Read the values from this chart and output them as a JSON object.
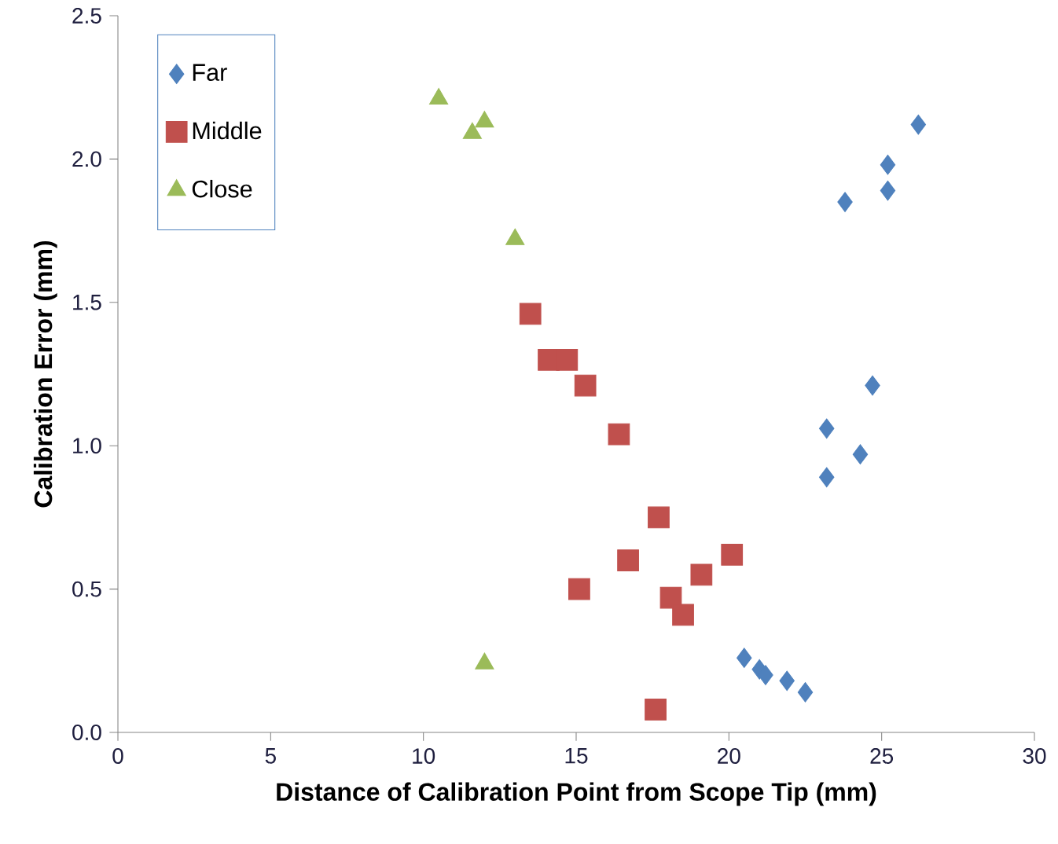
{
  "chart_data": {
    "type": "scatter",
    "xlabel": "Distance of Calibration Point from Scope Tip (mm)",
    "ylabel": "Calibration Error (mm)",
    "xlim": [
      0,
      30
    ],
    "xticks": [
      0,
      5,
      10,
      15,
      20,
      25,
      30
    ],
    "ylim": [
      0,
      2.5
    ],
    "yticks": [
      {
        "value": 0,
        "label": "0.0"
      },
      {
        "value": 0.5,
        "label": "0.5"
      },
      {
        "value": 1,
        "label": "1.0"
      },
      {
        "value": 1.5,
        "label": "1.5"
      },
      {
        "value": 2,
        "label": "2.0"
      },
      {
        "value": 2.5,
        "label": "2.5"
      }
    ],
    "grid": false,
    "legend": "top left",
    "series": [
      {
        "name": "Far",
        "color": "#4f81bd",
        "marker": "diamond",
        "x": [
          26.2,
          25.2,
          25.2,
          23.8,
          24.7,
          23.2,
          24.3,
          23.2,
          20.5,
          21.0,
          21.2,
          21.9,
          22.5
        ],
        "values": [
          2.12,
          1.98,
          1.89,
          1.85,
          1.21,
          1.06,
          0.97,
          0.89,
          0.26,
          0.22,
          0.2,
          0.18,
          0.14
        ]
      },
      {
        "name": "Middle",
        "color": "#c0504d",
        "marker": "square",
        "x": [
          13.5,
          14.1,
          14.7,
          15.3,
          16.4,
          17.7,
          16.7,
          15.1,
          20.1,
          19.1,
          18.1,
          18.5,
          17.6
        ],
        "values": [
          1.46,
          1.3,
          1.3,
          1.21,
          1.04,
          0.75,
          0.6,
          0.5,
          0.62,
          0.55,
          0.47,
          0.41,
          0.08
        ]
      },
      {
        "name": "Close",
        "color": "#9bbb59",
        "marker": "triangle",
        "x": [
          10.5,
          11.6,
          12.0,
          13.0,
          12.0
        ],
        "values": [
          2.21,
          2.09,
          2.13,
          1.72,
          0.24
        ]
      }
    ]
  }
}
